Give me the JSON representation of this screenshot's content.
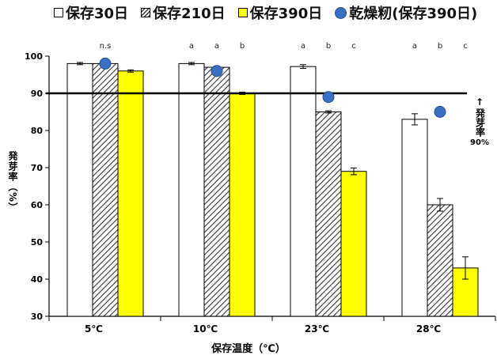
{
  "legend": {
    "items": [
      {
        "label": "保存30日",
        "swatch": "white"
      },
      {
        "label": "保存210日",
        "swatch": "hatch"
      },
      {
        "label": "保存390日",
        "swatch": "yellow"
      },
      {
        "label": "乾燥籾(保存390日)",
        "swatch": "dot"
      }
    ]
  },
  "axes": {
    "ylabel": "発芽率（%）",
    "xlabel": "保存温度（℃）"
  },
  "reference": {
    "arrow": "↑",
    "label": "発芽率",
    "value_label": "90%"
  },
  "colors": {
    "bar_30": "#ffffff",
    "bar_210_hatch": "#333333",
    "bar_390": "#ffff00",
    "dot": "#3a6fc4",
    "reference_line": "#000000"
  },
  "chart_data": {
    "type": "bar",
    "categories": [
      "5℃",
      "10℃",
      "23℃",
      "28℃"
    ],
    "series": [
      {
        "name": "保存30日",
        "values": [
          98,
          98,
          97.2,
          83
        ],
        "errors": [
          0.3,
          0.3,
          0.5,
          1.5
        ]
      },
      {
        "name": "保存210日",
        "values": [
          98,
          97,
          85,
          60
        ],
        "errors": [
          0.3,
          0.3,
          0.3,
          1.7
        ]
      },
      {
        "name": "保存390日",
        "values": [
          96,
          90,
          69,
          43
        ],
        "errors": [
          0.3,
          0.3,
          0.9,
          3
        ]
      },
      {
        "name": "乾燥籾(保存390日)",
        "type": "scatter",
        "values": [
          98,
          96,
          89,
          85
        ]
      }
    ],
    "significance": [
      [
        "",
        "n.s",
        ""
      ],
      [
        "a",
        "a",
        "b"
      ],
      [
        "a",
        "b",
        "c"
      ],
      [
        "a",
        "b",
        "c"
      ]
    ],
    "reference_line": 90,
    "ylim": [
      30,
      100
    ],
    "yticks": [
      30,
      40,
      50,
      60,
      70,
      80,
      90,
      100
    ],
    "ylabel": "発芽率（%）",
    "xlabel": "保存温度（℃）",
    "grid": false,
    "legend_position": "top"
  }
}
